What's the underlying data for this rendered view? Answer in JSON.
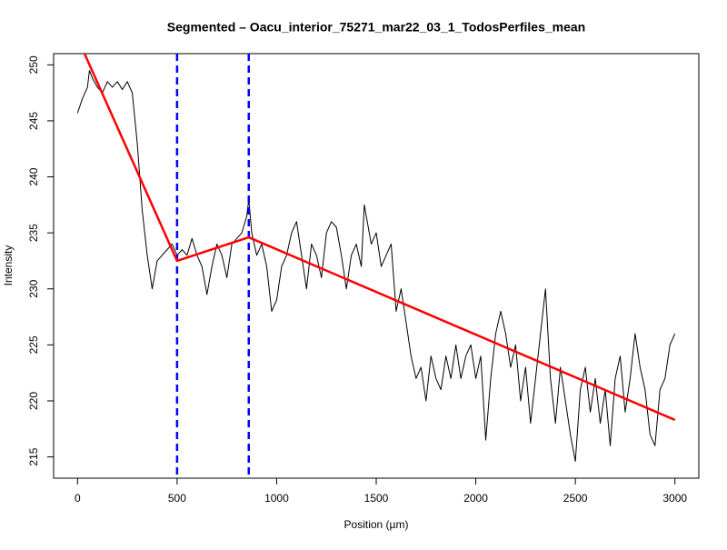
{
  "chart_data": {
    "type": "line",
    "title": "Segmented – Oacu_interior_75271_mar22_03_1_TodosPerfiles_mean",
    "xlabel": "Position (µm)",
    "ylabel": "Intensity",
    "x": [
      0,
      25,
      50,
      60,
      75,
      100,
      125,
      150,
      175,
      200,
      225,
      250,
      275,
      300,
      325,
      350,
      375,
      400,
      425,
      450,
      475,
      500,
      525,
      550,
      575,
      600,
      625,
      650,
      675,
      700,
      725,
      750,
      775,
      800,
      825,
      850,
      860,
      875,
      900,
      925,
      950,
      975,
      1000,
      1025,
      1050,
      1075,
      1100,
      1125,
      1150,
      1175,
      1200,
      1225,
      1250,
      1275,
      1300,
      1325,
      1350,
      1375,
      1400,
      1425,
      1440,
      1475,
      1500,
      1525,
      1550,
      1575,
      1600,
      1625,
      1650,
      1675,
      1700,
      1725,
      1750,
      1775,
      1800,
      1825,
      1850,
      1875,
      1900,
      1925,
      1950,
      1975,
      2000,
      2025,
      2050,
      2075,
      2100,
      2125,
      2150,
      2175,
      2200,
      2225,
      2250,
      2275,
      2300,
      2325,
      2350,
      2375,
      2400,
      2425,
      2450,
      2475,
      2500,
      2525,
      2550,
      2575,
      2600,
      2625,
      2650,
      2675,
      2700,
      2725,
      2750,
      2775,
      2800,
      2825,
      2850,
      2875,
      2900,
      2925,
      2950,
      2975,
      3000
    ],
    "series": [
      {
        "color": "#000000",
        "values": [
          245.7,
          247,
          248,
          249.5,
          248.8,
          248,
          247.5,
          248.5,
          248,
          248.5,
          247.8,
          248.5,
          247.5,
          243,
          237,
          233,
          230,
          232.5,
          233,
          233.5,
          234,
          233,
          233.5,
          233,
          234.5,
          233,
          232,
          229.5,
          232,
          234,
          233,
          231,
          234,
          234.5,
          235,
          236.5,
          238,
          235,
          233,
          234,
          232,
          228,
          229,
          232,
          233,
          235,
          236,
          233,
          230,
          234,
          233,
          231,
          235,
          236,
          235.5,
          233,
          230,
          233,
          234,
          232,
          237.5,
          234,
          235,
          232,
          233,
          234,
          228,
          230,
          227,
          224,
          222,
          223,
          220,
          224,
          222,
          221,
          224,
          222,
          225,
          222,
          224,
          225,
          222,
          224,
          216.5,
          222,
          226,
          228,
          226,
          223,
          225,
          220,
          223,
          218,
          222,
          226,
          230,
          222,
          218,
          223,
          220,
          217,
          214.6,
          221,
          223,
          219,
          222,
          218,
          221,
          216,
          222,
          224,
          219,
          222,
          226,
          223,
          221,
          217,
          216,
          221,
          222,
          225,
          226
        ]
      }
    ],
    "fit": {
      "color": "#ff0000",
      "x": [
        0,
        500,
        860,
        3000
      ],
      "values": [
        252.4,
        232.5,
        234.6,
        218.3
      ]
    },
    "breakpoints": {
      "color": "#0000ff",
      "values": [
        500,
        860
      ]
    },
    "xlim": [
      -120,
      3120
    ],
    "ylim": [
      213.1,
      251.0
    ],
    "xticks": [
      0,
      500,
      1000,
      1500,
      2000,
      2500,
      3000
    ],
    "yticks": [
      215,
      220,
      225,
      230,
      235,
      240,
      245,
      250
    ]
  }
}
